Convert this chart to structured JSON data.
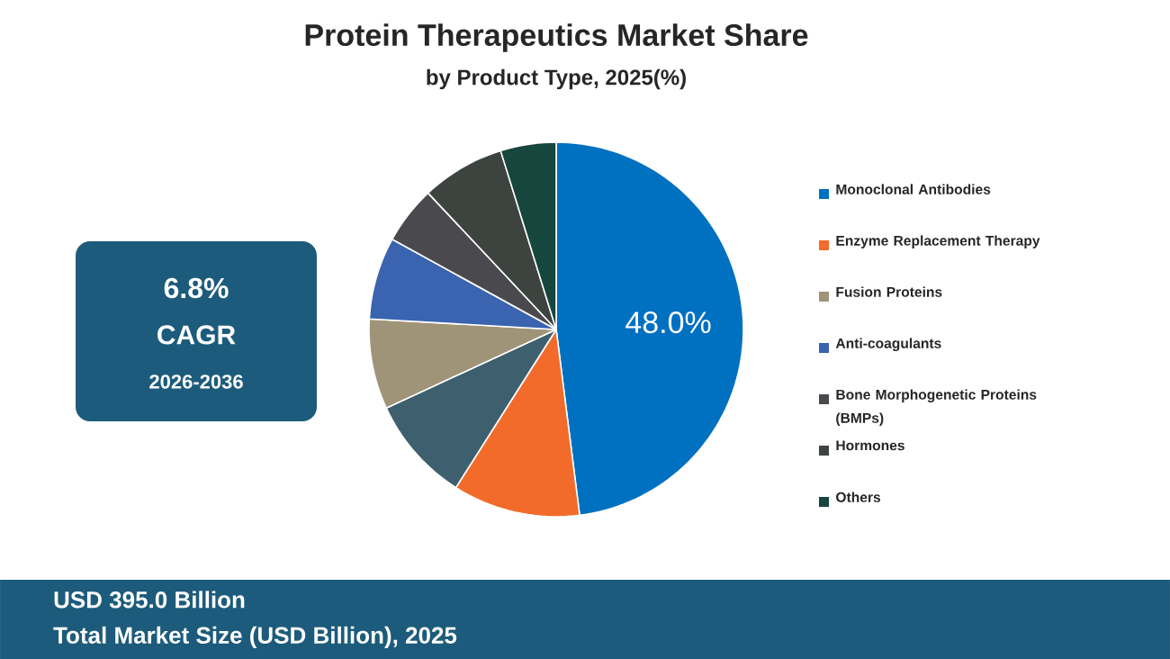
{
  "chart_data": {
    "type": "pie",
    "title": "Protein Therapeutics Market Share",
    "subtitle": "by Product Type, 2025(%)",
    "categories": [
      "Monoclonal Antibodies",
      "Enzyme Replacement Therapy",
      null,
      "Fusion Proteins",
      "Anti-coagulants",
      "Bone Morphogenetic Proteins (BMPs)",
      "Hormones",
      "Others"
    ],
    "values": [
      48.0,
      11,
      9.1,
      7.8,
      7.1,
      5.0,
      7.2,
      4.8
    ],
    "colors": [
      "#0070c0",
      "#f26b2a",
      "#3e5f6e",
      "#a09478",
      "#3a64b0",
      "#4a4a4e",
      "#3d4440",
      "#16463e"
    ],
    "value_labels": [
      "48.0%",
      null,
      null,
      null,
      null,
      null,
      null,
      null
    ],
    "legend": "right",
    "annotations": [
      "6.8%",
      "CAGR",
      "2026-2036",
      "USD 395.0 Billion",
      "Total Market Size (USD Billion), 2025"
    ]
  }
}
